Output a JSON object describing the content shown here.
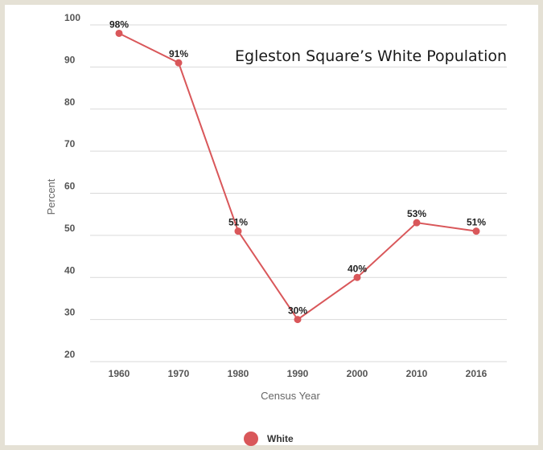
{
  "colors": {
    "series": "#d9575a",
    "grid": "#d9d9d9",
    "frame": "#e5e1d5"
  },
  "chart_data": {
    "type": "line",
    "title": "Egleston Square’s White Population",
    "xlabel": "Census Year",
    "ylabel": "Percent",
    "categories": [
      "1960",
      "1970",
      "1980",
      "1990",
      "2000",
      "2010",
      "2016"
    ],
    "series": [
      {
        "name": "White",
        "values": [
          98,
          91,
          51,
          30,
          40,
          53,
          51
        ],
        "labels": [
          "98%",
          "91%",
          "51%",
          "30%",
          "40%",
          "53%",
          "51%"
        ]
      }
    ],
    "ylim": [
      20,
      100
    ],
    "yticks": [
      "100",
      "90",
      "80",
      "70",
      "60",
      "50",
      "40",
      "30",
      "20"
    ],
    "grid": true,
    "legend": "bottom-center"
  }
}
